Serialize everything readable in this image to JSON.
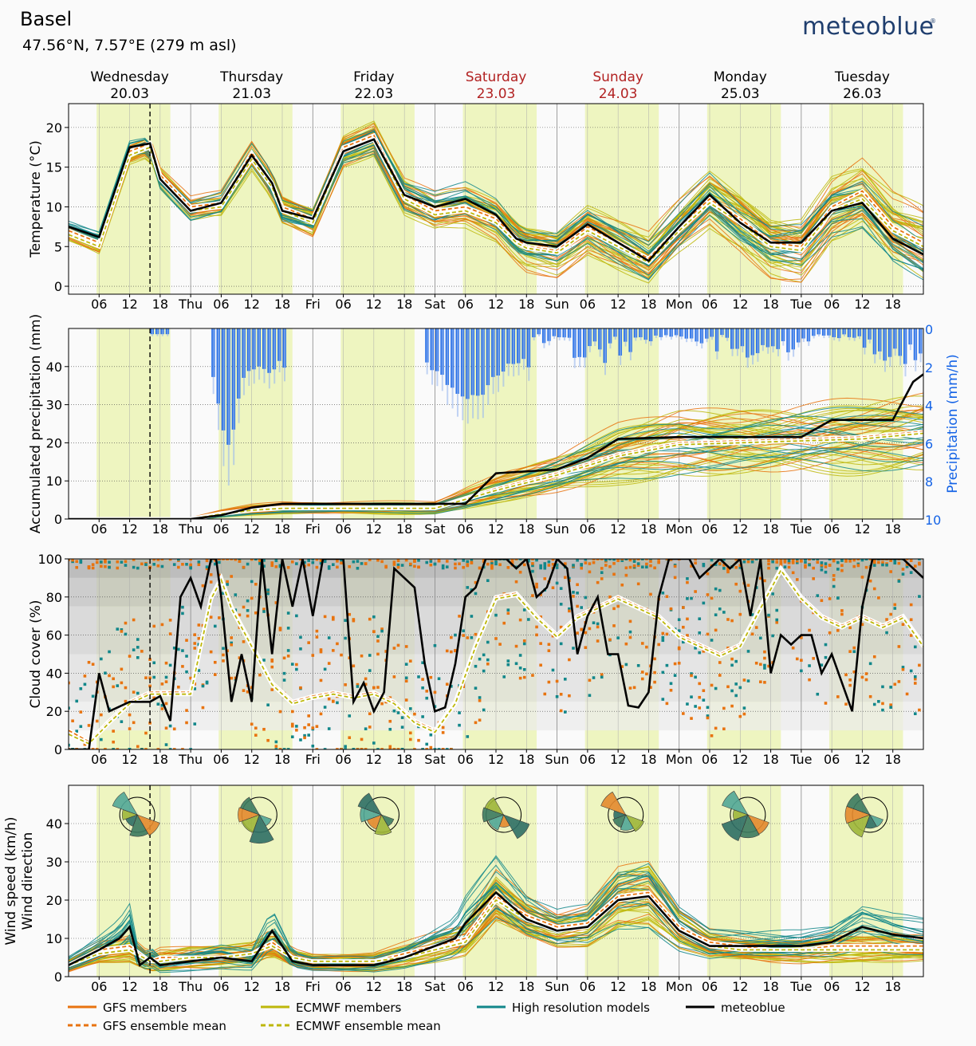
{
  "header": {
    "location": "Basel",
    "coords": "47.56°N, 7.57°E (279 m asl)",
    "brand": "meteoblue"
  },
  "days": [
    {
      "name": "Wednesday",
      "date": "20.03",
      "weekend": false
    },
    {
      "name": "Thursday",
      "date": "21.03",
      "weekend": false
    },
    {
      "name": "Friday",
      "date": "22.03",
      "weekend": false
    },
    {
      "name": "Saturday",
      "date": "23.03",
      "weekend": true
    },
    {
      "name": "Sunday",
      "date": "24.03",
      "weekend": true
    },
    {
      "name": "Monday",
      "date": "25.03",
      "weekend": false
    },
    {
      "name": "Tuesday",
      "date": "26.03",
      "weekend": false
    }
  ],
  "x_axis": {
    "start_hour": 0,
    "end_hour": 168,
    "tick_labels": [
      "06",
      "12",
      "18",
      "Thu",
      "06",
      "12",
      "18",
      "Fri",
      "06",
      "12",
      "18",
      "Sat",
      "06",
      "12",
      "18",
      "Sun",
      "06",
      "12",
      "18",
      "Mon",
      "06",
      "12",
      "18",
      "Tue",
      "06",
      "12",
      "18"
    ],
    "now_hour": 16
  },
  "colors": {
    "gfs": "#e8730f",
    "ecmwf": "#bdb70a",
    "hires": "#12878a",
    "meteoblue": "#000000",
    "daylight": "#eef5c0",
    "precip": "#1463e6",
    "weekend": "#b22222"
  },
  "legend": [
    {
      "key": "gfs_members",
      "label": "GFS members",
      "color": "#e8730f",
      "style": "solid"
    },
    {
      "key": "ecmwf_members",
      "label": "ECMWF members",
      "color": "#bdb70a",
      "style": "solid"
    },
    {
      "key": "hires",
      "label": "High resolution models",
      "color": "#12878a",
      "style": "solid"
    },
    {
      "key": "meteoblue",
      "label": "meteoblue",
      "color": "#000000",
      "style": "solid"
    },
    {
      "key": "gfs_mean",
      "label": "GFS ensemble mean",
      "color": "#e8730f",
      "style": "dashed"
    },
    {
      "key": "ecmwf_mean",
      "label": "ECMWF ensemble mean",
      "color": "#bdb70a",
      "style": "dashed"
    }
  ],
  "chart_data": [
    {
      "type": "line",
      "id": "temperature",
      "ylabel": "Temperature (°C)",
      "ylim": [
        -1,
        23
      ],
      "yticks": [
        0,
        5,
        10,
        15,
        20
      ],
      "series": [
        {
          "name": "meteoblue",
          "x": [
            0,
            6,
            12,
            16,
            18,
            24,
            30,
            36,
            40,
            42,
            48,
            54,
            60,
            66,
            72,
            78,
            84,
            88,
            90,
            96,
            102,
            108,
            114,
            120,
            126,
            132,
            138,
            144,
            150,
            156,
            162,
            168
          ],
          "values": [
            7.5,
            6.2,
            17.5,
            18,
            13.5,
            9.5,
            10.5,
            16.5,
            13,
            9.5,
            8.5,
            17,
            18.5,
            11.5,
            10,
            11,
            9,
            6,
            5.5,
            5,
            7.8,
            5.5,
            3.2,
            7.5,
            11.5,
            8,
            5.5,
            5.5,
            9.5,
            10.5,
            6,
            4
          ]
        },
        {
          "name": "GFS ensemble mean",
          "x": [
            0,
            6,
            12,
            16,
            18,
            24,
            30,
            36,
            40,
            42,
            48,
            54,
            60,
            66,
            72,
            78,
            84,
            88,
            90,
            96,
            102,
            108,
            114,
            120,
            126,
            132,
            138,
            144,
            150,
            156,
            162,
            168
          ],
          "values": [
            7,
            5.5,
            17,
            18,
            14,
            10,
            10.5,
            16.8,
            13,
            10,
            8.5,
            17.5,
            19,
            11.5,
            9.5,
            10,
            8.5,
            6,
            5,
            4.5,
            7.5,
            5.5,
            3.5,
            7.5,
            11,
            8.5,
            5.5,
            5,
            10,
            12,
            7.5,
            5.5
          ]
        },
        {
          "name": "ECMWF ensemble mean",
          "x": [
            0,
            6,
            12,
            16,
            18,
            24,
            30,
            36,
            40,
            42,
            48,
            54,
            60,
            66,
            72,
            78,
            84,
            88,
            90,
            96,
            102,
            108,
            114,
            120,
            126,
            132,
            138,
            144,
            150,
            156,
            162,
            168
          ],
          "values": [
            6.5,
            5,
            16.5,
            17.5,
            13.5,
            9.5,
            10,
            16,
            12.5,
            9.5,
            8,
            17,
            18.5,
            11,
            9,
            9.5,
            8,
            5.5,
            4.8,
            4.2,
            7,
            5,
            3,
            7,
            10.5,
            8,
            5,
            4.5,
            9.5,
            11,
            7,
            5
          ]
        }
      ]
    },
    {
      "type": "line",
      "id": "precipitation",
      "ylabel": "Accumulated precipitation (mm)",
      "ylabel2": "Precipitation (mm/h)",
      "ylim": [
        0,
        50
      ],
      "yticks": [
        0,
        10,
        20,
        30,
        40
      ],
      "y2ticks": [
        0,
        2,
        4,
        6,
        8,
        10
      ],
      "series": [
        {
          "name": "meteoblue",
          "x": [
            0,
            24,
            30,
            36,
            42,
            48,
            60,
            72,
            78,
            84,
            96,
            102,
            108,
            120,
            132,
            144,
            150,
            162,
            166,
            168
          ],
          "values": [
            0,
            0,
            1,
            3,
            4,
            4,
            4,
            4,
            4,
            12,
            13,
            16,
            21,
            21.5,
            21.5,
            21.5,
            26,
            26,
            36,
            38
          ]
        },
        {
          "name": "GFS ensemble mean",
          "x": [
            0,
            24,
            30,
            36,
            42,
            48,
            60,
            72,
            84,
            96,
            108,
            120,
            132,
            144,
            156,
            168
          ],
          "values": [
            0,
            0,
            1.5,
            2.5,
            3,
            3,
            3,
            3,
            8,
            12,
            17,
            20,
            20.5,
            21,
            21.5,
            23
          ]
        },
        {
          "name": "ECMWF ensemble mean",
          "x": [
            0,
            24,
            30,
            36,
            42,
            48,
            60,
            72,
            84,
            96,
            108,
            120,
            132,
            144,
            156,
            168
          ],
          "values": [
            0,
            0,
            1.3,
            2.3,
            2.8,
            2.8,
            2.8,
            2.8,
            7.5,
            11.5,
            16.5,
            19.5,
            20,
            20.5,
            21,
            22.5
          ]
        }
      ]
    },
    {
      "type": "line",
      "id": "cloud",
      "ylabel": "Cloud cover (%)",
      "ylim": [
        0,
        100
      ],
      "yticks": [
        0,
        20,
        40,
        60,
        80,
        100
      ],
      "series": [
        {
          "name": "meteoblue",
          "x": [
            0,
            4,
            6,
            8,
            12,
            16,
            18,
            20,
            22,
            24,
            26,
            28,
            29,
            30,
            32,
            34,
            36,
            38,
            40,
            42,
            44,
            46,
            48,
            50,
            52,
            54,
            56,
            58,
            60,
            62,
            64,
            66,
            68,
            70,
            72,
            74,
            76,
            78,
            80,
            82,
            84,
            86,
            88,
            90,
            92,
            94,
            96,
            98,
            100,
            102,
            104,
            106,
            108,
            110,
            112,
            114,
            116,
            118,
            120,
            122,
            124,
            126,
            128,
            130,
            132,
            134,
            136,
            138,
            140,
            142,
            144,
            146,
            148,
            150,
            152,
            154,
            156,
            158,
            160,
            162,
            164,
            166,
            168
          ],
          "values": [
            0,
            0,
            40,
            20,
            25,
            25,
            28,
            15,
            80,
            90,
            75,
            100,
            100,
            80,
            25,
            50,
            25,
            100,
            50,
            100,
            75,
            100,
            70,
            100,
            100,
            100,
            25,
            35,
            20,
            30,
            95,
            90,
            85,
            45,
            20,
            22,
            45,
            80,
            85,
            100,
            100,
            100,
            95,
            100,
            80,
            85,
            100,
            95,
            50,
            70,
            80,
            50,
            50,
            23,
            22,
            30,
            80,
            100,
            100,
            100,
            90,
            95,
            100,
            95,
            100,
            70,
            100,
            40,
            60,
            55,
            60,
            60,
            40,
            50,
            35,
            20,
            75,
            100,
            100,
            100,
            100,
            95,
            90
          ]
        },
        {
          "name": "GFS ensemble mean",
          "x": [
            0,
            4,
            8,
            12,
            16,
            20,
            24,
            28,
            30,
            32,
            36,
            40,
            44,
            48,
            52,
            56,
            60,
            64,
            68,
            72,
            76,
            80,
            84,
            88,
            92,
            96,
            100,
            104,
            108,
            112,
            116,
            120,
            124,
            128,
            132,
            136,
            140,
            144,
            148,
            152,
            156,
            160,
            164,
            168
          ],
          "values": [
            10,
            4,
            15,
            25,
            30,
            30,
            30,
            80,
            90,
            75,
            55,
            35,
            25,
            28,
            30,
            28,
            30,
            25,
            15,
            10,
            25,
            55,
            80,
            82,
            70,
            60,
            70,
            75,
            80,
            75,
            70,
            60,
            55,
            50,
            55,
            75,
            95,
            80,
            70,
            65,
            70,
            65,
            70,
            55
          ]
        },
        {
          "name": "ECMWF ensemble mean",
          "x": [
            0,
            4,
            8,
            12,
            16,
            20,
            24,
            28,
            30,
            32,
            36,
            40,
            44,
            48,
            52,
            56,
            60,
            64,
            68,
            72,
            76,
            80,
            84,
            88,
            92,
            96,
            100,
            104,
            108,
            112,
            116,
            120,
            124,
            128,
            132,
            136,
            140,
            144,
            148,
            152,
            156,
            160,
            164,
            168
          ],
          "values": [
            8,
            3,
            14,
            24,
            29,
            29,
            29,
            79,
            89,
            74,
            54,
            34,
            24,
            27,
            29,
            27,
            29,
            24,
            14,
            9,
            24,
            54,
            79,
            81,
            69,
            59,
            69,
            74,
            79,
            74,
            69,
            59,
            54,
            49,
            54,
            74,
            94,
            79,
            69,
            64,
            69,
            64,
            69,
            54
          ]
        }
      ]
    },
    {
      "type": "line",
      "id": "wind",
      "ylabel": "Wind speed (km/h)",
      "ylabel2": "Wind direction",
      "ylim": [
        0,
        50
      ],
      "yticks": [
        0,
        10,
        20,
        30,
        40
      ],
      "series": [
        {
          "name": "meteoblue",
          "x": [
            0,
            6,
            10,
            12,
            14,
            16,
            18,
            24,
            30,
            36,
            40,
            44,
            48,
            54,
            60,
            66,
            72,
            76,
            78,
            84,
            90,
            96,
            102,
            108,
            114,
            120,
            126,
            132,
            138,
            144,
            150,
            156,
            162,
            168
          ],
          "values": [
            3,
            7,
            10,
            13,
            3,
            5,
            3,
            4,
            5,
            4,
            12,
            4,
            3,
            3,
            3,
            5,
            8,
            10,
            14,
            22,
            15,
            12,
            13,
            20,
            21,
            12,
            8,
            8,
            8,
            8,
            9,
            13,
            11,
            10
          ]
        },
        {
          "name": "GFS ensemble mean",
          "x": [
            0,
            6,
            12,
            16,
            18,
            24,
            30,
            36,
            40,
            44,
            48,
            54,
            60,
            66,
            72,
            78,
            84,
            90,
            96,
            102,
            108,
            114,
            120,
            126,
            132,
            138,
            144,
            150,
            156,
            162,
            168
          ],
          "values": [
            3,
            7,
            8,
            4,
            5,
            5,
            5,
            6,
            9,
            5,
            4,
            4,
            4,
            6,
            8,
            10,
            21,
            16,
            13,
            14,
            21,
            22,
            13,
            9,
            8,
            7,
            7,
            8,
            8,
            8,
            8
          ]
        },
        {
          "name": "ECMWF ensemble mean",
          "x": [
            0,
            6,
            12,
            16,
            18,
            24,
            30,
            36,
            40,
            44,
            48,
            54,
            60,
            66,
            72,
            78,
            84,
            90,
            96,
            102,
            108,
            114,
            120,
            126,
            132,
            138,
            144,
            150,
            156,
            162,
            168
          ],
          "values": [
            3,
            6,
            7,
            4,
            4,
            5,
            5,
            6,
            8,
            5,
            4,
            4,
            4,
            5,
            7,
            9,
            20,
            15,
            12,
            13,
            20,
            21,
            12,
            8,
            7,
            7,
            7,
            7,
            7,
            7,
            7
          ]
        }
      ]
    }
  ]
}
